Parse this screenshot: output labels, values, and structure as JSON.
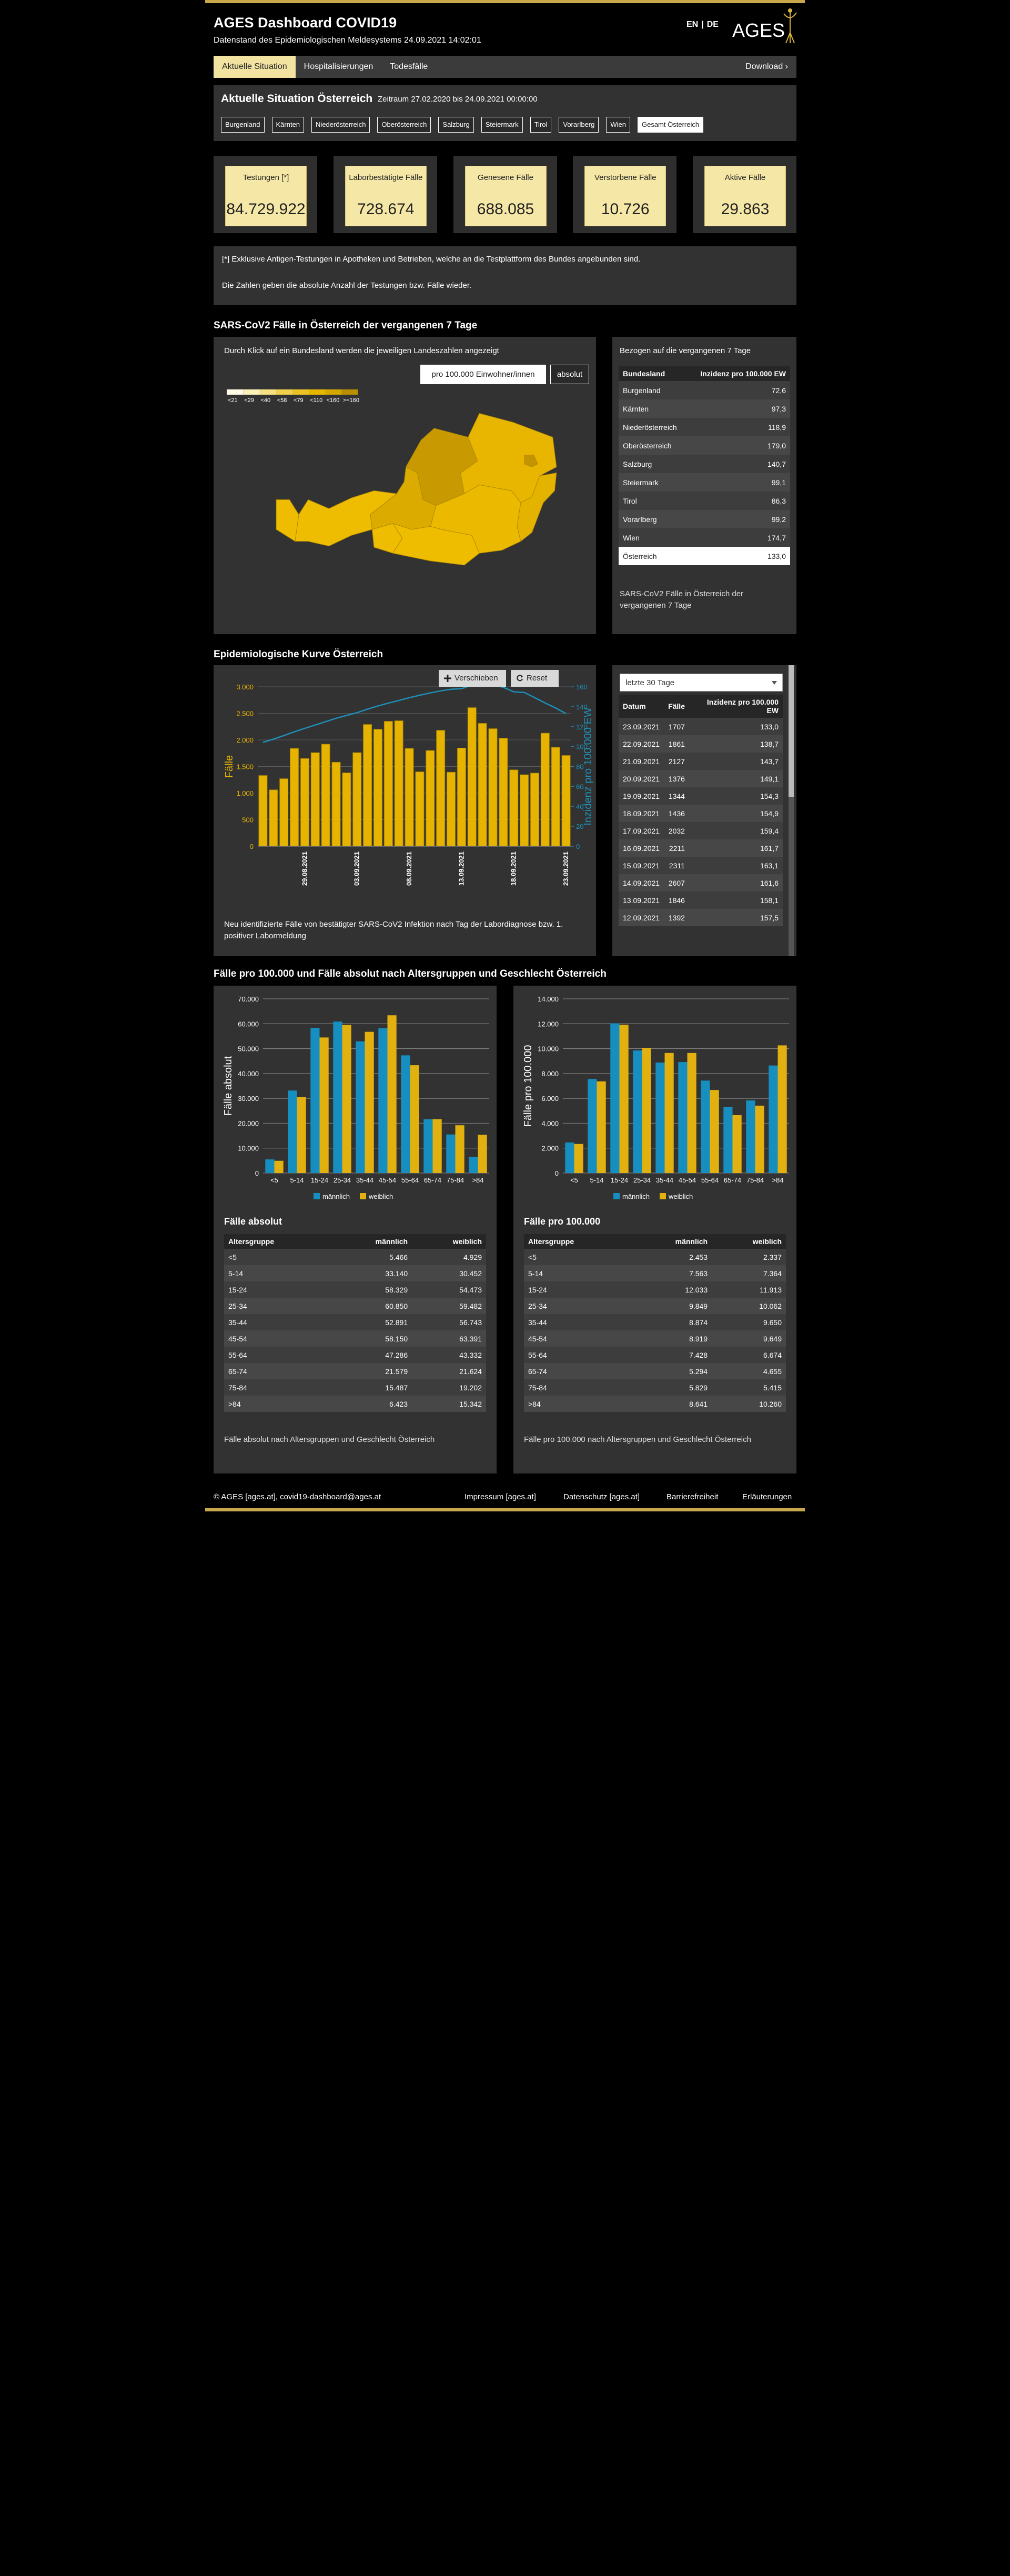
{
  "header": {
    "title": "AGES Dashboard COVID19",
    "subtitle": "Datenstand des Epidemiologischen Meldesystems 24.09.2021 14:02:01",
    "lang_en": "EN",
    "lang_sep": "|",
    "lang_de": "DE",
    "logo": "AGES"
  },
  "tabs": [
    "Aktuelle Situation",
    "Hospitalisierungen",
    "Todesfälle"
  ],
  "download": "Download ›",
  "situation": {
    "title": "Aktuelle Situation Österreich",
    "period": "Zeitraum 27.02.2020 bis 24.09.2021 00:00:00",
    "regions": [
      "Burgenland",
      "Kärnten",
      "Niederösterreich",
      "Oberösterreich",
      "Salzburg",
      "Steiermark",
      "Tirol",
      "Vorarlberg",
      "Wien",
      "Gesamt Österreich"
    ]
  },
  "kpis": [
    {
      "label": "Testungen [*]",
      "value": "84.729.922"
    },
    {
      "label": "Laborbestätigte Fälle",
      "value": "728.674"
    },
    {
      "label": "Genesene Fälle",
      "value": "688.085"
    },
    {
      "label": "Verstorbene Fälle",
      "value": "10.726"
    },
    {
      "label": "Aktive Fälle",
      "value": "29.863"
    }
  ],
  "note": [
    "[*] Exklusive Antigen-Testungen in Apotheken und Betrieben, welche an die Testplattform des Bundes angebunden sind.",
    "Die Zahlen geben die absolute Anzahl der Testungen bzw. Fälle wieder."
  ],
  "map_section": {
    "title": "SARS-CoV2 Fälle in Österreich der vergangenen 7 Tage",
    "hint": "Durch Klick auf ein Bundesland werden die jeweiligen Landeszahlen angezeigt",
    "toggle": [
      "pro 100.000 Einwohner/innen",
      "absolut"
    ],
    "legend": [
      "<21",
      "<29",
      "<40",
      "<58",
      "<79",
      "<110",
      "<160",
      ">=160"
    ],
    "legend_colors": [
      "#fffbe6",
      "#fbf0b8",
      "#f6e184",
      "#f0d04c",
      "#ebc224",
      "#e6b500",
      "#d4a600",
      "#b88f00"
    ],
    "region_colors": [
      "#e4b300",
      "#eebd00",
      "#e8b600",
      "#c89900",
      "#dcab00",
      "#ebb900",
      "#eebc00",
      "#eebc00",
      "#c39400"
    ],
    "table": {
      "caption": "Bezogen auf die vergangenen 7 Tage",
      "columns": [
        "Bundesland",
        "Inzidenz pro 100.000 EW"
      ],
      "rows": [
        [
          "Burgenland",
          "72,6"
        ],
        [
          "Kärnten",
          "97,3"
        ],
        [
          "Niederösterreich",
          "118,9"
        ],
        [
          "Oberösterreich",
          "179,0"
        ],
        [
          "Salzburg",
          "140,7"
        ],
        [
          "Steiermark",
          "99,1"
        ],
        [
          "Tirol",
          "86,3"
        ],
        [
          "Vorarlberg",
          "99,2"
        ],
        [
          "Wien",
          "174,7"
        ],
        [
          "Österreich",
          "133,0"
        ]
      ]
    },
    "footnote": "SARS-CoV2 Fälle in Österreich der vergangenen 7 Tage"
  },
  "epi_section": {
    "title": "Epidemiologische Kurve Österreich",
    "tools": [
      "Verschieben",
      "Reset"
    ],
    "caption": "Neu identifizierte Fälle von bestätigter SARS-CoV2 Infektion nach Tag der Labordiagnose bzw. 1. positiver Labormeldung",
    "select": "letzte 30 Tage",
    "table": {
      "columns": [
        "Datum",
        "Fälle",
        "Inzidenz pro 100.000 EW"
      ],
      "rows": [
        [
          "23.09.2021",
          "1707",
          "133,0"
        ],
        [
          "22.09.2021",
          "1861",
          "138,7"
        ],
        [
          "21.09.2021",
          "2127",
          "143,7"
        ],
        [
          "20.09.2021",
          "1376",
          "149,1"
        ],
        [
          "19.09.2021",
          "1344",
          "154,3"
        ],
        [
          "18.09.2021",
          "1436",
          "154,9"
        ],
        [
          "17.09.2021",
          "2032",
          "159,4"
        ],
        [
          "16.09.2021",
          "2211",
          "161,7"
        ],
        [
          "15.09.2021",
          "2311",
          "163,1"
        ],
        [
          "14.09.2021",
          "2607",
          "161,6"
        ],
        [
          "13.09.2021",
          "1846",
          "158,1"
        ],
        [
          "12.09.2021",
          "1392",
          "157,5"
        ]
      ]
    }
  },
  "age_section": {
    "title": "Fälle pro 100.000 und Fälle absolut nach Altersgruppen und Geschlecht Österreich",
    "panels": [
      {
        "table_title": "Fälle absolut",
        "columns": [
          "Altersgruppe",
          "männlich",
          "weiblich"
        ],
        "rows": [
          [
            "<5",
            "5.466",
            "4.929"
          ],
          [
            "5-14",
            "33.140",
            "30.452"
          ],
          [
            "15-24",
            "58.329",
            "54.473"
          ],
          [
            "25-34",
            "60.850",
            "59.482"
          ],
          [
            "35-44",
            "52.891",
            "56.743"
          ],
          [
            "45-54",
            "58.150",
            "63.391"
          ],
          [
            "55-64",
            "47.286",
            "43.332"
          ],
          [
            "65-74",
            "21.579",
            "21.624"
          ],
          [
            "75-84",
            "15.487",
            "19.202"
          ],
          [
            ">84",
            "6.423",
            "15.342"
          ]
        ],
        "caption": "Fälle absolut nach Altersgruppen und Geschlecht Österreich"
      },
      {
        "table_title": "Fälle pro 100.000",
        "columns": [
          "Altersgruppe",
          "männlich",
          "weiblich"
        ],
        "rows": [
          [
            "<5",
            "2.453",
            "2.337"
          ],
          [
            "5-14",
            "7.563",
            "7.364"
          ],
          [
            "15-24",
            "12.033",
            "11.913"
          ],
          [
            "25-34",
            "9.849",
            "10.062"
          ],
          [
            "35-44",
            "8.874",
            "9.650"
          ],
          [
            "45-54",
            "8.919",
            "9.649"
          ],
          [
            "55-64",
            "7.428",
            "6.674"
          ],
          [
            "65-74",
            "5.294",
            "4.655"
          ],
          [
            "75-84",
            "5.829",
            "5.415"
          ],
          [
            ">84",
            "8.641",
            "10.260"
          ]
        ],
        "caption": "Fälle pro 100.000 nach Altersgruppen und Geschlecht Österreich"
      }
    ]
  },
  "footer": {
    "copyright": "© AGES [ages.at], covid19-dashboard@ages.at",
    "links": [
      "Impressum [ages.at]",
      "Datenschutz [ages.at]",
      "Barrierefreiheit",
      "Erläuterungen"
    ]
  },
  "chart_data": [
    {
      "type": "bar",
      "ylabel": "Fälle",
      "y2label": "Inzidenz pro 100.000 EW",
      "categories": [
        null,
        null,
        null,
        null,
        "29.08.2021",
        null,
        null,
        null,
        null,
        "03.09.2021",
        null,
        null,
        null,
        null,
        "08.09.2021",
        null,
        null,
        null,
        null,
        "13.09.2021",
        null,
        null,
        null,
        null,
        "18.09.2021",
        null,
        null,
        null,
        null,
        "23.09.2021"
      ],
      "series": [
        {
          "type": "bar",
          "color": "#e6b400",
          "values": [
            1330,
            1060,
            1270,
            1840,
            1650,
            1760,
            1920,
            1580,
            1380,
            1760,
            2290,
            2200,
            2350,
            2360,
            1840,
            1400,
            1800,
            2180,
            1392,
            1846,
            2607,
            2311,
            2211,
            2032,
            1436,
            1344,
            1376,
            2127,
            1861,
            1707
          ]
        },
        {
          "type": "line",
          "axis": "y2",
          "color": "#1d90b8",
          "values": [
            104.2,
            107.5,
            111.0,
            114.8,
            118.3,
            121.6,
            125.0,
            128.4,
            131.2,
            134.0,
            137.5,
            140.8,
            143.6,
            146.2,
            149.0,
            151.5,
            153.8,
            155.9,
            157.5,
            158.1,
            161.6,
            163.1,
            161.7,
            159.4,
            154.9,
            154.3,
            149.1,
            143.7,
            138.7,
            133.0
          ]
        }
      ],
      "ylim": [
        0,
        3000
      ],
      "yticks": [
        0,
        500,
        {
          "value": 1000,
          "label": "1.000"
        },
        {
          "value": 1500,
          "label": "1.500"
        },
        {
          "value": 2000,
          "label": "2.000"
        },
        {
          "value": 2500,
          "label": "2.500"
        },
        {
          "value": 3000,
          "label": "3.000"
        }
      ],
      "y2lim": [
        0,
        160
      ],
      "y2ticks": [
        0,
        20,
        40,
        60,
        80,
        100,
        120,
        140,
        160
      ],
      "grid": true
    },
    {
      "type": "bar",
      "ylabel": "Fälle absolut",
      "categories": [
        "<5",
        "5-14",
        "15-24",
        "25-34",
        "35-44",
        "45-54",
        "55-64",
        "65-74",
        "75-84",
        ">84"
      ],
      "series": [
        {
          "name": "männlich",
          "color": "#168fc0",
          "values": [
            5466,
            33140,
            58329,
            60850,
            52891,
            58150,
            47286,
            21579,
            15487,
            6423
          ]
        },
        {
          "name": "weiblich",
          "color": "#e2b10f",
          "values": [
            4929,
            30452,
            54473,
            59482,
            56743,
            63391,
            43332,
            21624,
            19202,
            15342
          ]
        }
      ],
      "ylim": [
        0,
        70000
      ],
      "yticks": [
        0,
        {
          "value": 10000,
          "label": "10.000"
        },
        {
          "value": 20000,
          "label": "20.000"
        },
        {
          "value": 30000,
          "label": "30.000"
        },
        {
          "value": 40000,
          "label": "40.000"
        },
        {
          "value": 50000,
          "label": "50.000"
        },
        {
          "value": 60000,
          "label": "60.000"
        },
        {
          "value": 70000,
          "label": "70.000"
        }
      ],
      "grid": true
    },
    {
      "type": "bar",
      "ylabel": "Fälle pro 100.000",
      "categories": [
        "<5",
        "5-14",
        "15-24",
        "25-34",
        "35-44",
        "45-54",
        "55-64",
        "65-74",
        "75-84",
        ">84"
      ],
      "series": [
        {
          "name": "männlich",
          "color": "#168fc0",
          "values": [
            2453,
            7563,
            12033,
            9849,
            8874,
            8919,
            7428,
            5294,
            5829,
            8641
          ]
        },
        {
          "name": "weiblich",
          "color": "#e2b10f",
          "values": [
            2337,
            7364,
            11913,
            10062,
            9650,
            9649,
            6674,
            4655,
            5415,
            10260
          ]
        }
      ],
      "ylim": [
        0,
        14000
      ],
      "yticks": [
        0,
        {
          "value": 2000,
          "label": "2.000"
        },
        {
          "value": 4000,
          "label": "4.000"
        },
        {
          "value": 6000,
          "label": "6.000"
        },
        {
          "value": 8000,
          "label": "8.000"
        },
        {
          "value": 10000,
          "label": "10.000"
        },
        {
          "value": 12000,
          "label": "12.000"
        },
        {
          "value": 14000,
          "label": "14.000"
        }
      ],
      "grid": true
    }
  ]
}
